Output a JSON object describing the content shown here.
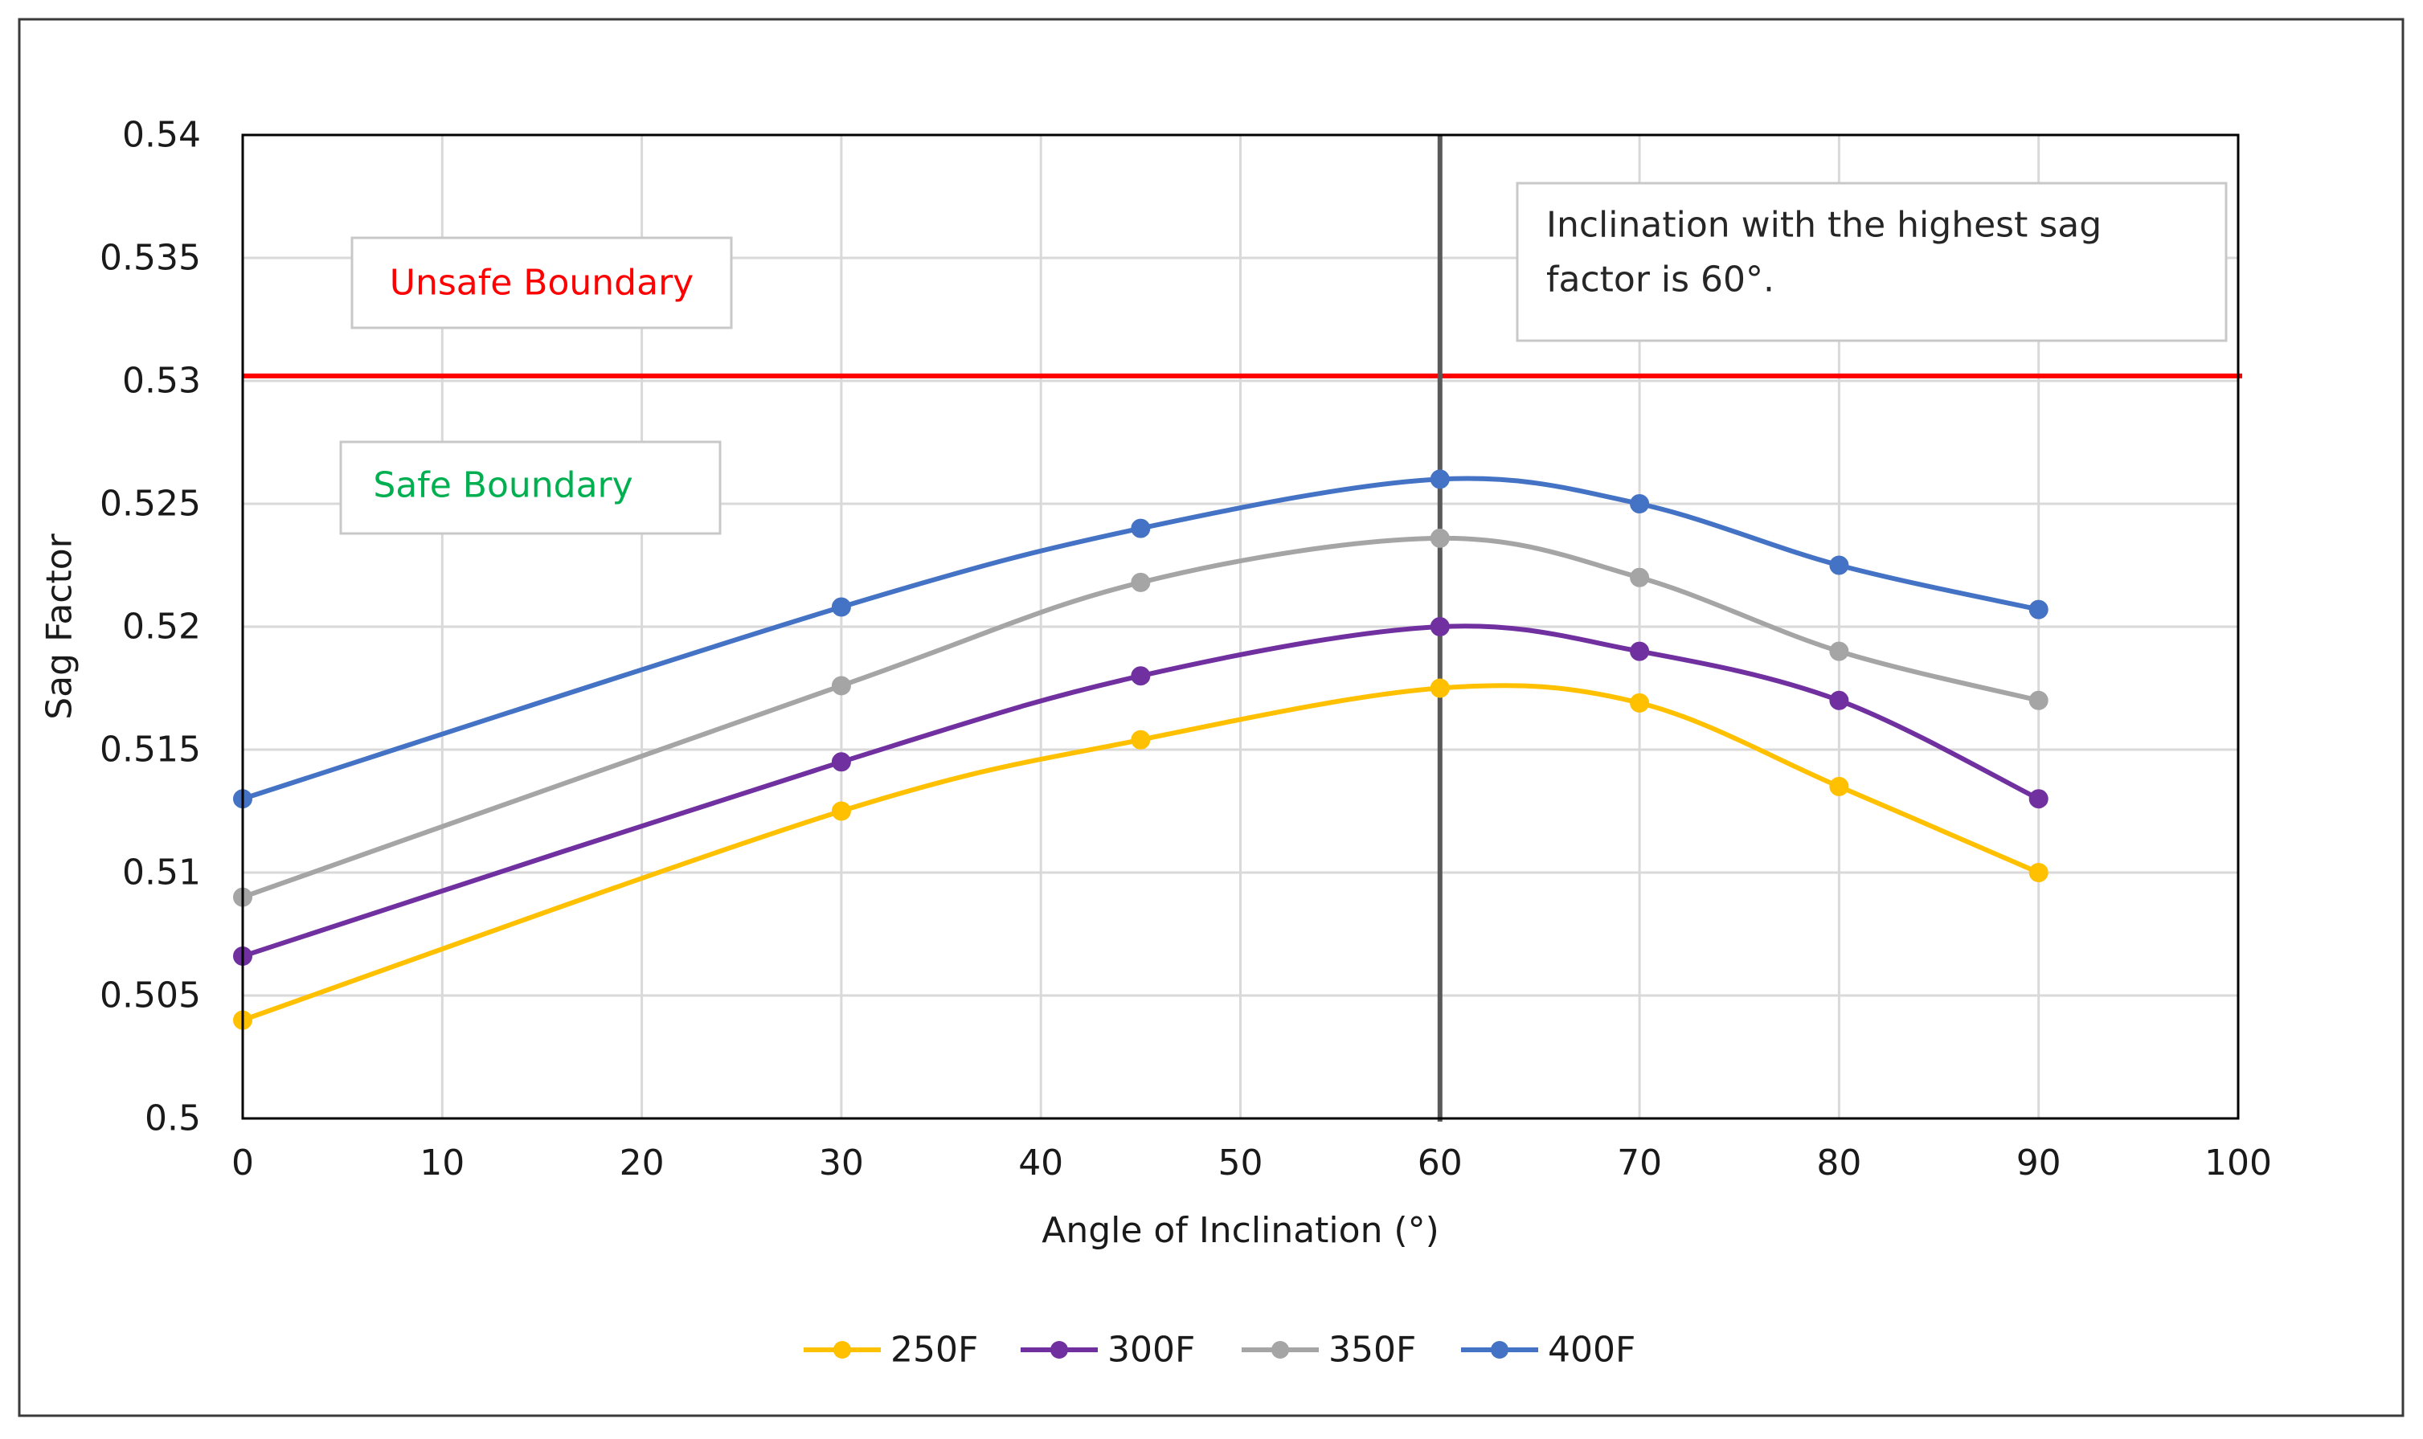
{
  "chart_data": {
    "type": "line",
    "title": "",
    "xlabel": "Angle of Inclination (°)",
    "ylabel": "Sag Factor",
    "xlim": [
      0,
      100
    ],
    "ylim": [
      0.5,
      0.54
    ],
    "x_ticks": [
      0,
      10,
      20,
      30,
      40,
      50,
      60,
      70,
      80,
      90,
      100
    ],
    "x_tick_labels": [
      "0",
      "10",
      "20",
      "30",
      "40",
      "50",
      "60",
      "70",
      "80",
      "90",
      "100"
    ],
    "y_ticks": [
      0.5,
      0.505,
      0.51,
      0.515,
      0.52,
      0.525,
      0.53,
      0.535,
      0.54
    ],
    "y_tick_labels": [
      "0.5",
      "0.505",
      "0.51",
      "0.515",
      "0.52",
      "0.525",
      "0.53",
      "0.535",
      "0.54"
    ],
    "grid": true,
    "legend_position": "bottom",
    "x": [
      0,
      30,
      45,
      60,
      70,
      80,
      90
    ],
    "series": [
      {
        "name": "250F",
        "color": "#FFC000",
        "values": [
          0.504,
          0.5125,
          0.5154,
          0.5175,
          0.5169,
          0.5135,
          0.51
        ]
      },
      {
        "name": "300F",
        "color": "#7030A0",
        "values": [
          0.5066,
          0.5145,
          0.518,
          0.52,
          0.519,
          0.517,
          0.513
        ]
      },
      {
        "name": "350F",
        "color": "#A5A5A5",
        "values": [
          0.509,
          0.5176,
          0.5218,
          0.5236,
          0.522,
          0.519,
          0.517
        ]
      },
      {
        "name": "400F",
        "color": "#4472C4",
        "values": [
          0.513,
          0.5208,
          0.524,
          0.526,
          0.525,
          0.5225,
          0.5207
        ]
      }
    ],
    "reference_lines": [
      {
        "orientation": "horizontal",
        "value": 0.5302,
        "color": "#FF0000",
        "label": ""
      },
      {
        "orientation": "vertical",
        "value": 60,
        "color": "#595959",
        "label": ""
      }
    ],
    "annotations": [
      {
        "id": "unsafe",
        "text": "Unsafe Boundary",
        "color": "#FF0000"
      },
      {
        "id": "safe",
        "text": "Safe Boundary",
        "color": "#00B050"
      },
      {
        "id": "note",
        "lines": [
          "Inclination with the highest sag",
          "factor is 60°."
        ],
        "color": "#262626"
      }
    ]
  }
}
